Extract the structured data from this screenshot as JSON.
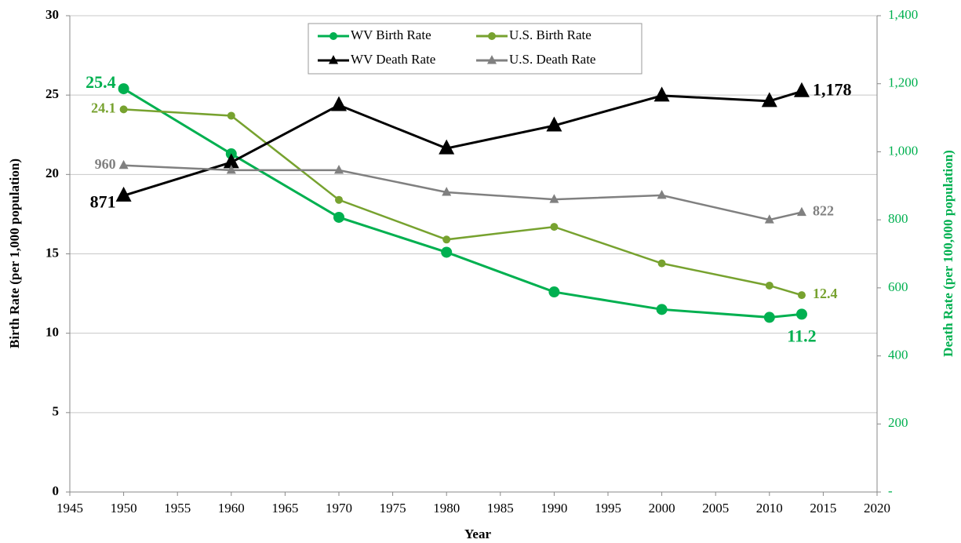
{
  "chart_data": {
    "type": "line",
    "x_label": "Year",
    "y_label": "Birth Rate (per 1,000 population)",
    "y2_label": "Death Rate (per 100,000 population)",
    "x": [
      1950,
      1960,
      1970,
      1980,
      1990,
      2000,
      2010,
      2013
    ],
    "series": [
      {
        "name": "WV Birth Rate",
        "color": "#00b050",
        "marker": "circle",
        "values": [
          25.4,
          21.3,
          17.3,
          15.1,
          12.6,
          11.5,
          11.0,
          11.2
        ],
        "value_labels": [
          "25.4",
          null,
          null,
          null,
          null,
          null,
          null,
          "11.2"
        ]
      },
      {
        "name": "U.S. Birth Rate",
        "color": "#77a22f",
        "marker": "circle",
        "values": [
          24.1,
          23.7,
          18.4,
          15.9,
          16.7,
          14.4,
          13.0,
          12.4
        ],
        "value_labels": [
          "24.1",
          null,
          null,
          null,
          null,
          null,
          null,
          "12.4"
        ]
      },
      {
        "name": "WV Death Rate",
        "color": "#000000",
        "marker": "triangle",
        "axis": "y2",
        "values": [
          871,
          969,
          1137,
          1010,
          1077,
          1165,
          1149,
          1178
        ],
        "value_labels": [
          "871",
          null,
          null,
          null,
          null,
          null,
          null,
          "1,178"
        ]
      },
      {
        "name": "U.S. Death Rate",
        "color": "#808080",
        "marker": "triangle",
        "axis": "y2",
        "values": [
          960,
          946,
          946,
          881,
          860,
          872,
          800,
          822
        ],
        "value_labels": [
          "960",
          null,
          null,
          null,
          null,
          null,
          null,
          "822"
        ]
      }
    ],
    "xlim": [
      1945,
      2020
    ],
    "xticks": [
      1945,
      1950,
      1955,
      1960,
      1965,
      1970,
      1975,
      1980,
      1985,
      1990,
      1995,
      2000,
      2005,
      2010,
      2015,
      2020
    ],
    "ylim": [
      0,
      30
    ],
    "yticks": [
      0,
      5,
      10,
      15,
      20,
      25,
      30
    ],
    "y2lim": [
      0,
      1400
    ],
    "y2ticks": [
      {
        "value": 0,
        "label": "-"
      },
      200,
      400,
      600,
      800,
      {
        "value": 1000,
        "label": "1,000"
      },
      {
        "value": 1200,
        "label": "1,200"
      },
      {
        "value": 1400,
        "label": "1,400"
      }
    ],
    "grid": true,
    "legend": "top"
  }
}
